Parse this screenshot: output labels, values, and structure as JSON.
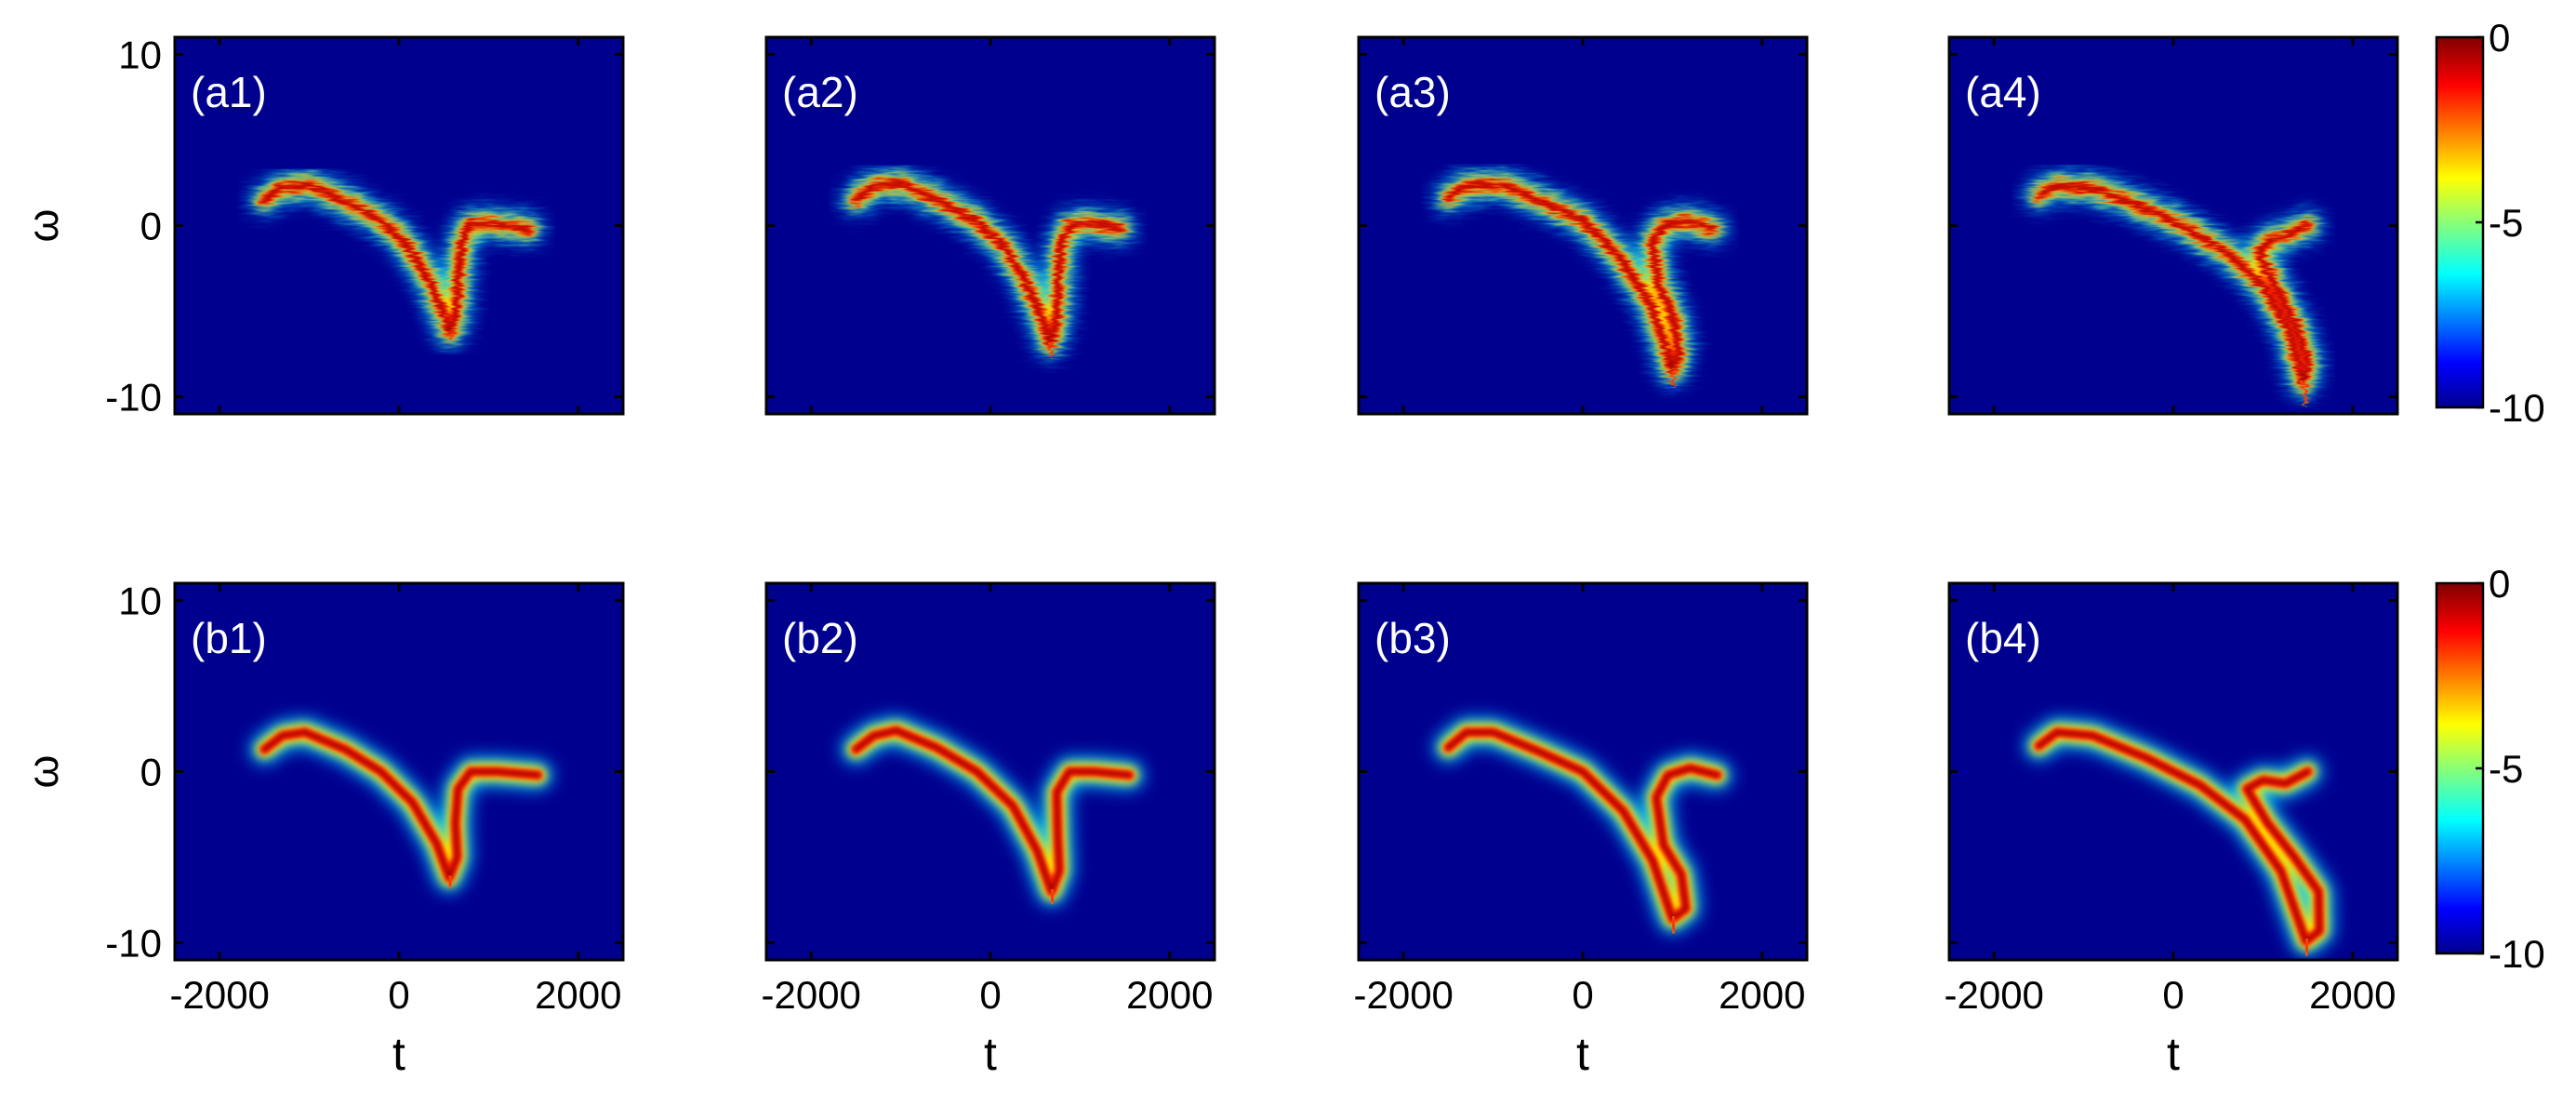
{
  "chart_data": {
    "type": "heatmap",
    "grid": "2 rows x 4 columns of spectrogram panels",
    "x_axis": {
      "label": "t",
      "range": [
        -2500,
        2500
      ],
      "ticks": [
        -2000,
        0,
        2000
      ],
      "tick_labels": [
        "-2000",
        "0",
        "2000"
      ]
    },
    "y_axis": {
      "label": "ω",
      "range": [
        11,
        -11
      ],
      "inverted": true,
      "ticks": [
        -10,
        0,
        10
      ],
      "tick_labels": [
        "-10",
        "0",
        "10"
      ]
    },
    "colorbar": {
      "range": [
        -10,
        0
      ],
      "ticks": [
        0,
        -5,
        -10
      ],
      "tick_labels": [
        "0",
        "-5",
        "-10"
      ],
      "colormap": "jet",
      "colors": [
        "#00008f",
        "#0000ff",
        "#00ffff",
        "#ffff00",
        "#ff0000",
        "#800000"
      ]
    },
    "background_color": "#00008f",
    "panels": [
      {
        "id": "a1",
        "row": 0,
        "col": 0,
        "label": "(a1)",
        "style": "noisy",
        "main_branch": [
          [
            -1500,
            1.5
          ],
          [
            -1300,
            2.2
          ],
          [
            -1000,
            2.4
          ],
          [
            -600,
            1.4
          ],
          [
            -200,
            0.3
          ],
          [
            100,
            -1.2
          ],
          [
            350,
            -3.3
          ],
          [
            520,
            -5.5
          ],
          [
            570,
            -6.3
          ]
        ],
        "peak_top": -6.6,
        "hook": [
          [
            570,
            -6.3
          ],
          [
            640,
            -5.0
          ],
          [
            660,
            -3.2
          ],
          [
            690,
            -1.2
          ],
          [
            790,
            0.1
          ],
          [
            1100,
            0.1
          ],
          [
            1450,
            -0.2
          ]
        ]
      },
      {
        "id": "a2",
        "row": 0,
        "col": 1,
        "label": "(a2)",
        "style": "noisy",
        "main_branch": [
          [
            -1500,
            1.5
          ],
          [
            -1300,
            2.3
          ],
          [
            -1000,
            2.5
          ],
          [
            -600,
            1.5
          ],
          [
            -200,
            0.4
          ],
          [
            150,
            -1.2
          ],
          [
            400,
            -3.3
          ],
          [
            620,
            -6.0
          ],
          [
            670,
            -6.9
          ]
        ],
        "peak_top": -7.6,
        "hook": [
          [
            670,
            -6.9
          ],
          [
            740,
            -5.4
          ],
          [
            760,
            -3.4
          ],
          [
            780,
            -1.3
          ],
          [
            880,
            0.0
          ],
          [
            1150,
            0.1
          ],
          [
            1450,
            -0.2
          ]
        ]
      },
      {
        "id": "a3",
        "row": 0,
        "col": 2,
        "label": "(a3)",
        "style": "noisy",
        "main_branch": [
          [
            -1500,
            1.6
          ],
          [
            -1300,
            2.3
          ],
          [
            -900,
            2.4
          ],
          [
            -500,
            1.5
          ],
          [
            0,
            0.3
          ],
          [
            400,
            -1.8
          ],
          [
            750,
            -4.5
          ],
          [
            950,
            -7.5
          ],
          [
            1000,
            -8.5
          ]
        ],
        "peak_top": -9.3,
        "hook": [
          [
            1000,
            -8.5
          ],
          [
            1070,
            -7.2
          ],
          [
            1000,
            -5.2
          ],
          [
            850,
            -3.5
          ],
          [
            770,
            -1.0
          ],
          [
            900,
            0.0
          ],
          [
            1150,
            0.3
          ],
          [
            1450,
            -0.2
          ]
        ]
      },
      {
        "id": "a4",
        "row": 0,
        "col": 3,
        "label": "(a4)",
        "style": "noisy",
        "main_branch": [
          [
            -1500,
            1.8
          ],
          [
            -1300,
            2.3
          ],
          [
            -900,
            2.2
          ],
          [
            -400,
            1.2
          ],
          [
            100,
            0.0
          ],
          [
            600,
            -1.6
          ],
          [
            1000,
            -3.5
          ],
          [
            1300,
            -6.2
          ],
          [
            1450,
            -9.2
          ]
        ],
        "peak_top": -10.2,
        "hook": [
          [
            1450,
            -9.2
          ],
          [
            1500,
            -8.0
          ],
          [
            1380,
            -6.0
          ],
          [
            1180,
            -4.0
          ],
          [
            950,
            -1.5
          ],
          [
            1100,
            -0.8
          ],
          [
            1300,
            -0.5
          ],
          [
            1500,
            0.0
          ]
        ]
      },
      {
        "id": "b1",
        "row": 1,
        "col": 0,
        "label": "(b1)",
        "style": "smooth",
        "main_branch": [
          [
            -1500,
            1.3
          ],
          [
            -1300,
            2.1
          ],
          [
            -1050,
            2.3
          ],
          [
            -600,
            1.3
          ],
          [
            -200,
            0.0
          ],
          [
            150,
            -1.8
          ],
          [
            420,
            -4.2
          ],
          [
            560,
            -6.2
          ]
        ],
        "peak_top": -6.7,
        "hook": [
          [
            560,
            -6.2
          ],
          [
            650,
            -5.0
          ],
          [
            630,
            -3.0
          ],
          [
            660,
            -1.0
          ],
          [
            800,
            0.0
          ],
          [
            1100,
            0.0
          ],
          [
            1550,
            -0.2
          ]
        ]
      },
      {
        "id": "b2",
        "row": 1,
        "col": 1,
        "label": "(b2)",
        "style": "smooth",
        "main_branch": [
          [
            -1500,
            1.3
          ],
          [
            -1300,
            2.1
          ],
          [
            -1050,
            2.4
          ],
          [
            -600,
            1.4
          ],
          [
            -150,
            0.0
          ],
          [
            250,
            -2.0
          ],
          [
            520,
            -4.6
          ],
          [
            680,
            -7.0
          ]
        ],
        "peak_top": -7.6,
        "hook": [
          [
            680,
            -7.0
          ],
          [
            770,
            -5.8
          ],
          [
            750,
            -3.5
          ],
          [
            740,
            -1.2
          ],
          [
            880,
            0.0
          ],
          [
            1150,
            0.0
          ],
          [
            1550,
            -0.2
          ]
        ]
      },
      {
        "id": "b3",
        "row": 1,
        "col": 2,
        "label": "(b3)",
        "style": "smooth",
        "main_branch": [
          [
            -1500,
            1.4
          ],
          [
            -1300,
            2.3
          ],
          [
            -1000,
            2.3
          ],
          [
            -500,
            1.2
          ],
          [
            0,
            0.0
          ],
          [
            450,
            -2.3
          ],
          [
            780,
            -5.2
          ],
          [
            1000,
            -8.6
          ]
        ],
        "peak_top": -9.3,
        "hook": [
          [
            1000,
            -8.6
          ],
          [
            1150,
            -8.0
          ],
          [
            1100,
            -6.0
          ],
          [
            900,
            -4.3
          ],
          [
            820,
            -1.5
          ],
          [
            950,
            -0.2
          ],
          [
            1200,
            0.2
          ],
          [
            1500,
            -0.2
          ]
        ]
      },
      {
        "id": "b4",
        "row": 1,
        "col": 3,
        "label": "(b4)",
        "style": "smooth",
        "main_branch": [
          [
            -1500,
            1.5
          ],
          [
            -1300,
            2.3
          ],
          [
            -900,
            2.1
          ],
          [
            -300,
            0.8
          ],
          [
            300,
            -0.8
          ],
          [
            800,
            -2.8
          ],
          [
            1200,
            -5.8
          ],
          [
            1480,
            -9.9
          ]
        ],
        "peak_top": -10.6,
        "hook": [
          [
            1480,
            -9.9
          ],
          [
            1630,
            -9.3
          ],
          [
            1620,
            -7.0
          ],
          [
            1350,
            -5.0
          ],
          [
            1050,
            -3.0
          ],
          [
            820,
            -1.0
          ],
          [
            1000,
            -0.5
          ],
          [
            1250,
            -0.7
          ],
          [
            1500,
            0.0
          ]
        ]
      }
    ]
  }
}
